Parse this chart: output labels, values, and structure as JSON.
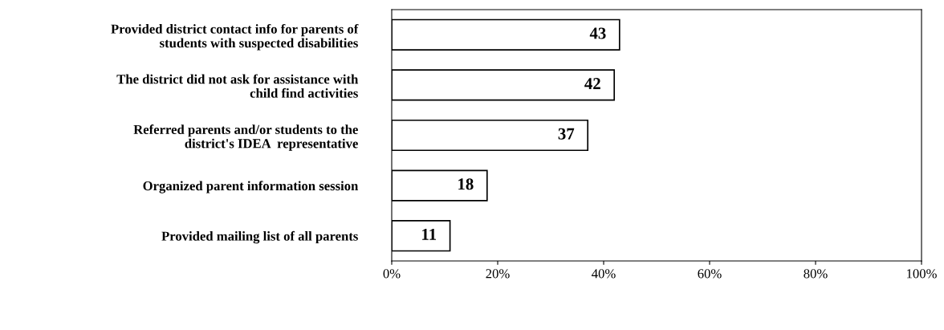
{
  "chart_data": {
    "type": "bar",
    "orientation": "horizontal",
    "categories": [
      "Provided district contact info for parents of\nstudents with suspected disabilities",
      "The district did not ask for assistance with\nchild find activities",
      "Referred parents and/or students to the\ndistrict's IDEA  representative",
      "Organized parent information session",
      "Provided mailing list of all parents"
    ],
    "values": [
      43,
      42,
      37,
      18,
      11
    ],
    "color": "#ffffff",
    "data_labels": true,
    "xlim": [
      0,
      100
    ],
    "xticks": [
      {
        "value": 0,
        "label": "0%"
      },
      {
        "value": 20,
        "label": "20%"
      },
      {
        "value": 40,
        "label": "40%"
      },
      {
        "value": 60,
        "label": "60%"
      },
      {
        "value": 80,
        "label": "80%"
      },
      {
        "value": 100,
        "label": "100%"
      }
    ],
    "grid": false,
    "legend": false
  }
}
